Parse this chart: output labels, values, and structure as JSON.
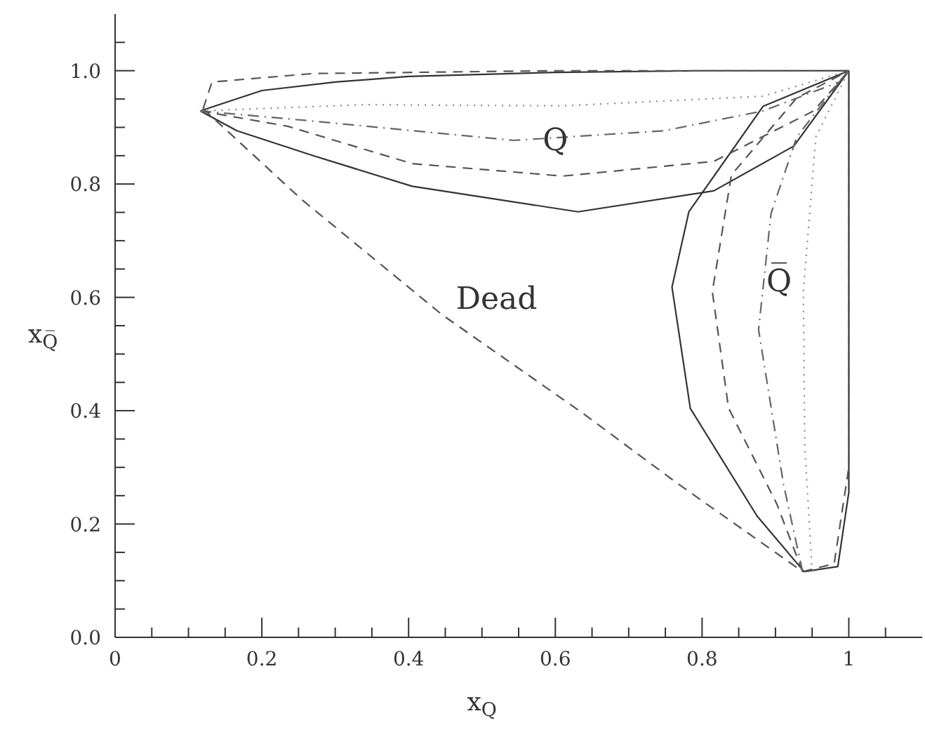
{
  "chart_data": {
    "type": "line",
    "xlabel": "x$_{Q}$",
    "ylabel": "x$_{Q̅}$",
    "xlim": [
      0,
      1.1
    ],
    "ylim": [
      0,
      1.1
    ],
    "xticks": [
      0,
      {
        "value": 0.05,
        "label": null
      },
      0.2,
      {
        "value": 0.1,
        "label": null
      },
      {
        "value": 0.15,
        "label": null
      },
      {
        "value": 0.25,
        "label": null
      },
      {
        "value": 0.3,
        "label": null
      },
      {
        "value": 0.35,
        "label": null
      },
      0.4,
      {
        "value": 0.45,
        "label": null
      },
      {
        "value": 0.5,
        "label": null
      },
      {
        "value": 0.55,
        "label": null
      },
      0.6,
      {
        "value": 0.65,
        "label": null
      },
      {
        "value": 0.7,
        "label": null
      },
      {
        "value": 0.75,
        "label": null
      },
      0.8,
      {
        "value": 0.85,
        "label": null
      },
      {
        "value": 0.9,
        "label": null
      },
      {
        "value": 0.95,
        "label": null
      },
      1,
      {
        "value": 1.05,
        "label": null
      }
    ],
    "yticks": [
      {
        "value": 0,
        "label": "0.0"
      },
      {
        "value": 0.05,
        "label": null
      },
      {
        "value": 0.1,
        "label": null
      },
      {
        "value": 0.15,
        "label": null
      },
      0.2,
      {
        "value": 0.25,
        "label": null
      },
      {
        "value": 0.3,
        "label": null
      },
      {
        "value": 0.35,
        "label": null
      },
      0.4,
      {
        "value": 0.45,
        "label": null
      },
      {
        "value": 0.5,
        "label": null
      },
      {
        "value": 0.55,
        "label": null
      },
      0.6,
      {
        "value": 0.65,
        "label": null
      },
      {
        "value": 0.7,
        "label": null
      },
      {
        "value": 0.75,
        "label": null
      },
      0.8,
      {
        "value": 0.85,
        "label": null
      },
      {
        "value": 0.9,
        "label": null
      },
      {
        "value": 0.95,
        "label": null
      },
      {
        "value": 1,
        "label": "1.0"
      },
      {
        "value": 1.05,
        "label": null
      }
    ],
    "marker": "none",
    "series": [
      {
        "color": "#333333",
        "line_style": "solid",
        "x": [
          0.116,
          0.2,
          0.3,
          0.4,
          0.6,
          0.8,
          1.0
        ],
        "values": [
          0.929,
          0.965,
          0.98,
          0.99,
          0.997,
          1.0,
          1.0
        ]
      },
      {
        "color": "#333333",
        "line_style": "solid",
        "x": [
          0.116,
          0.166,
          0.27,
          0.405,
          0.631,
          0.816,
          0.925,
          1.0
        ],
        "values": [
          0.929,
          0.894,
          0.85,
          0.796,
          0.751,
          0.788,
          0.867,
          1.0
        ]
      },
      {
        "color": "#333333",
        "line_style": "solid",
        "x": [
          0.939,
          0.875,
          0.784,
          0.759,
          0.782,
          0.883,
          1.0
        ],
        "values": [
          0.116,
          0.214,
          0.404,
          0.618,
          0.751,
          0.937,
          1.0
        ]
      },
      {
        "color": "#333333",
        "line_style": "solid",
        "x": [
          0.939,
          0.985,
          1.0,
          1.0
        ],
        "values": [
          0.116,
          0.125,
          0.256,
          1.0
        ]
      },
      {
        "color": "#555555",
        "line_style": "dashed",
        "x": [
          0.116,
          0.235,
          0.405,
          0.61,
          0.816,
          0.952,
          1.0
        ],
        "values": [
          0.929,
          0.902,
          0.836,
          0.814,
          0.84,
          0.929,
          1.0
        ]
      },
      {
        "color": "#555555",
        "line_style": "dashed",
        "x": [
          0.937,
          0.902,
          0.836,
          0.814,
          0.84,
          0.929,
          1.0
        ],
        "values": [
          0.116,
          0.235,
          0.405,
          0.61,
          0.816,
          0.952,
          1.0
        ]
      },
      {
        "color": "#666666",
        "line_style": "dashdot",
        "x": [
          0.116,
          0.27,
          0.543,
          0.748,
          0.883,
          0.987,
          1.0
        ],
        "values": [
          0.929,
          0.911,
          0.877,
          0.894,
          0.929,
          0.98,
          1.0
        ]
      },
      {
        "color": "#666666",
        "line_style": "dashdot",
        "x": [
          0.937,
          0.911,
          0.877,
          0.894,
          0.929,
          0.987,
          1.0
        ],
        "values": [
          0.116,
          0.27,
          0.543,
          0.748,
          0.883,
          0.98,
          1.0
        ]
      },
      {
        "color": "#888888",
        "line_style": "dotted",
        "x": [
          0.116,
          0.338,
          0.61,
          0.883,
          1.0
        ],
        "values": [
          0.929,
          0.94,
          0.938,
          0.955,
          1.0
        ]
      },
      {
        "color": "#888888",
        "line_style": "dotted",
        "x": [
          0.95,
          0.94,
          0.938,
          0.955,
          1.0
        ],
        "values": [
          0.116,
          0.338,
          0.61,
          0.883,
          1.0
        ]
      },
      {
        "color": "#555555",
        "line_style": "dashed",
        "x": [
          0.12,
          0.254,
          0.446,
          0.637,
          0.765,
          0.937
        ],
        "values": [
          0.933,
          0.773,
          0.569,
          0.396,
          0.273,
          0.116
        ]
      },
      {
        "color": "#555555",
        "line_style": "dashed",
        "x": [
          0.937,
          0.98,
          1.0,
          1.0
        ],
        "values": [
          0.116,
          0.13,
          0.3,
          1.0
        ]
      },
      {
        "color": "#555555",
        "line_style": "dashed",
        "x": [
          0.12,
          0.132,
          0.27,
          0.6,
          1.0
        ],
        "values": [
          0.933,
          0.98,
          0.995,
          1.0,
          1.0
        ]
      }
    ],
    "annotations": [
      "Q",
      "Dead",
      "Q̅"
    ]
  }
}
